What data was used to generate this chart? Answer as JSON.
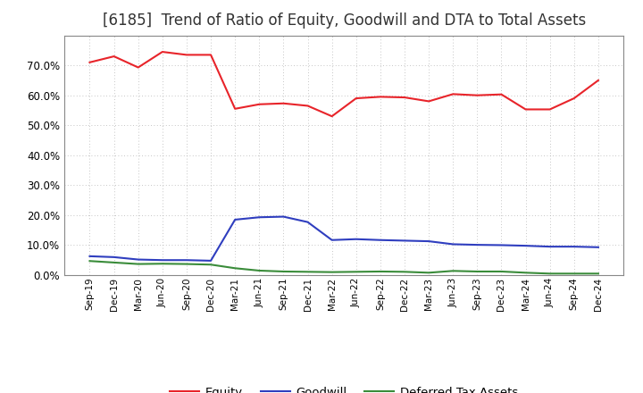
{
  "title": "[6185]  Trend of Ratio of Equity, Goodwill and DTA to Total Assets",
  "title_fontsize": 12,
  "title_fontweight": "normal",
  "labels": [
    "Sep-19",
    "Dec-19",
    "Mar-20",
    "Jun-20",
    "Sep-20",
    "Dec-20",
    "Mar-21",
    "Jun-21",
    "Sep-21",
    "Dec-21",
    "Mar-22",
    "Jun-22",
    "Sep-22",
    "Dec-22",
    "Mar-23",
    "Jun-23",
    "Sep-23",
    "Dec-23",
    "Mar-24",
    "Jun-24",
    "Sep-24",
    "Dec-24"
  ],
  "equity": [
    0.71,
    0.73,
    0.693,
    0.745,
    0.735,
    0.735,
    0.555,
    0.57,
    0.573,
    0.565,
    0.53,
    0.59,
    0.595,
    0.593,
    0.58,
    0.604,
    0.6,
    0.603,
    0.553,
    0.553,
    0.59,
    0.65
  ],
  "goodwill": [
    0.063,
    0.06,
    0.052,
    0.05,
    0.05,
    0.048,
    0.185,
    0.193,
    0.195,
    0.177,
    0.117,
    0.12,
    0.117,
    0.115,
    0.113,
    0.103,
    0.101,
    0.1,
    0.098,
    0.095,
    0.095,
    0.093
  ],
  "dta": [
    0.047,
    0.042,
    0.037,
    0.038,
    0.037,
    0.035,
    0.023,
    0.015,
    0.012,
    0.011,
    0.01,
    0.011,
    0.012,
    0.011,
    0.008,
    0.014,
    0.012,
    0.012,
    0.008,
    0.005,
    0.005,
    0.005
  ],
  "equity_color": "#e8242a",
  "goodwill_color": "#2f3ebf",
  "dta_color": "#3a8c3a",
  "background_color": "#ffffff",
  "grid_color": "#aaaaaa",
  "ylim": [
    0.0,
    0.8
  ],
  "yticks": [
    0.0,
    0.1,
    0.2,
    0.3,
    0.4,
    0.5,
    0.6,
    0.7
  ],
  "legend_labels": [
    "Equity",
    "Goodwill",
    "Deferred Tax Assets"
  ],
  "line_width": 1.5
}
